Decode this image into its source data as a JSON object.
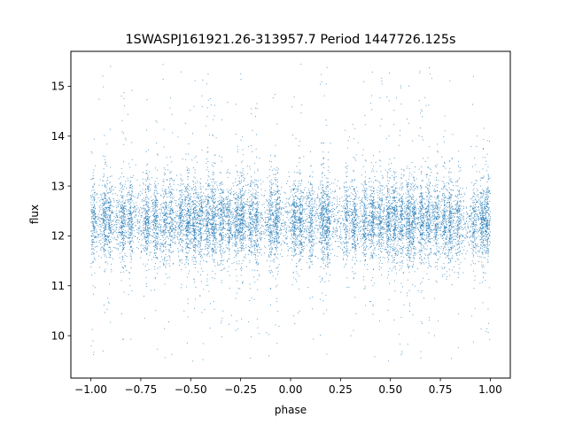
{
  "chart_data": {
    "type": "scatter",
    "title": "1SWASPJ161921.26-313957.7 Period 1447726.125s",
    "xlabel": "phase",
    "ylabel": "flux",
    "xlim": [
      -1.1,
      1.1
    ],
    "ylim": [
      9.15,
      15.7
    ],
    "x_ticks": [
      -1.0,
      -0.75,
      -0.5,
      -0.25,
      0.0,
      0.25,
      0.5,
      0.75,
      1.0
    ],
    "x_tick_labels": [
      "−1.00",
      "−0.75",
      "−0.50",
      "−0.25",
      "0.00",
      "0.25",
      "0.50",
      "0.75",
      "1.00"
    ],
    "y_ticks": [
      10,
      11,
      12,
      13,
      14,
      15
    ],
    "y_tick_labels": [
      "10",
      "11",
      "12",
      "13",
      "14",
      "15"
    ],
    "grid": false,
    "legend": null,
    "point_color": "#1f77b4",
    "phase_range": [
      -1.0,
      1.0
    ],
    "flux_median": 12.3,
    "flux_spread": 0.35,
    "observation_bands_phase": [
      -0.985,
      -0.93,
      -0.905,
      -0.84,
      -0.8,
      -0.72,
      -0.675,
      -0.63,
      -0.6,
      -0.55,
      -0.515,
      -0.48,
      -0.45,
      -0.415,
      -0.385,
      -0.345,
      -0.31,
      -0.27,
      -0.245,
      -0.2,
      -0.17,
      -0.1,
      -0.07,
      0.02,
      0.05,
      0.1,
      0.16,
      0.185,
      0.28,
      0.32,
      0.37,
      0.41,
      0.45,
      0.49,
      0.52,
      0.555,
      0.59,
      0.615,
      0.655,
      0.69,
      0.73,
      0.77,
      0.8,
      0.84,
      0.92,
      0.96,
      0.985
    ],
    "observed_flux_extremes": {
      "min": 9.45,
      "max": 15.45
    }
  }
}
